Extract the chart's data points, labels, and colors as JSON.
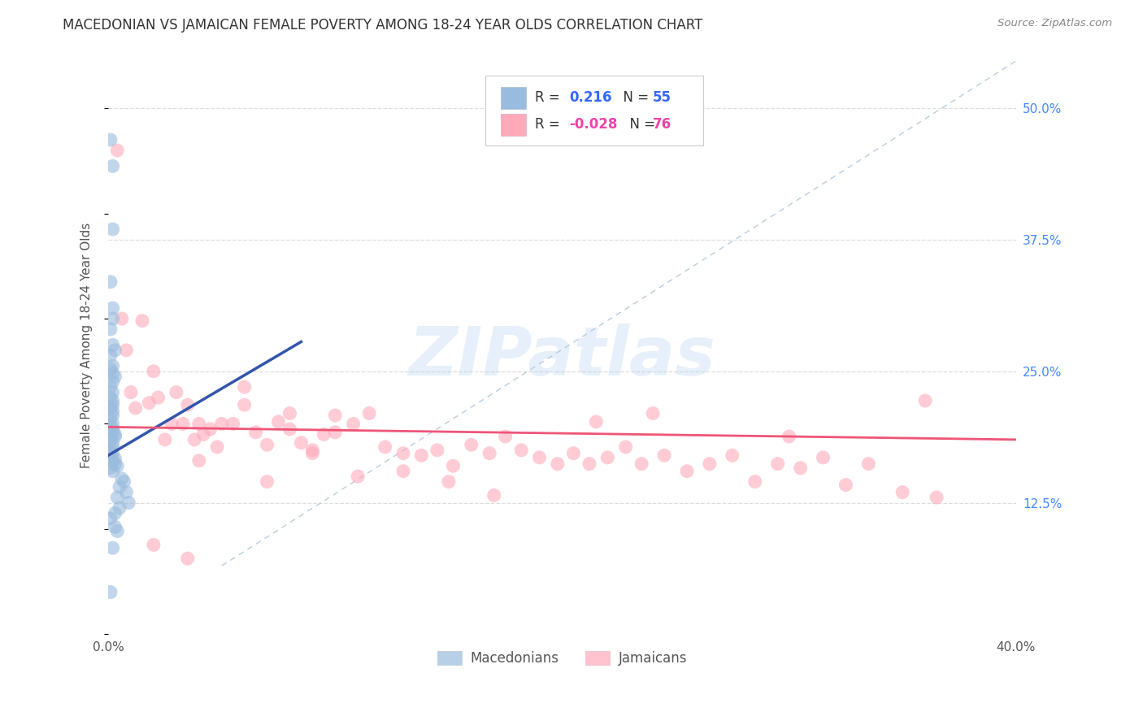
{
  "title": "MACEDONIAN VS JAMAICAN FEMALE POVERTY AMONG 18-24 YEAR OLDS CORRELATION CHART",
  "source": "Source: ZipAtlas.com",
  "ylabel": "Female Poverty Among 18-24 Year Olds",
  "xlim": [
    0.0,
    0.4
  ],
  "ylim": [
    0.0,
    0.55
  ],
  "xticks": [
    0.0,
    0.05,
    0.1,
    0.15,
    0.2,
    0.25,
    0.3,
    0.35,
    0.4
  ],
  "xticklabels": [
    "0.0%",
    "",
    "",
    "",
    "",
    "",
    "",
    "",
    "40.0%"
  ],
  "yticks_right": [
    0.125,
    0.25,
    0.375,
    0.5
  ],
  "ytick_labels_right": [
    "12.5%",
    "25.0%",
    "37.5%",
    "50.0%"
  ],
  "legend_r_blue": "0.216",
  "legend_n_blue": "55",
  "legend_r_pink": "-0.028",
  "legend_n_pink": "76",
  "blue_color": "#99BBDD",
  "pink_color": "#FFAABB",
  "blue_line_color": "#3355AA",
  "pink_line_color": "#EE5577",
  "diagonal_color": "#BBCCDD",
  "grid_color": "#DDDDDD",
  "macedonian_x": [
    0.001,
    0.002,
    0.002,
    0.001,
    0.002,
    0.002,
    0.001,
    0.002,
    0.003,
    0.001,
    0.002,
    0.001,
    0.002,
    0.003,
    0.002,
    0.001,
    0.002,
    0.001,
    0.002,
    0.002,
    0.001,
    0.002,
    0.002,
    0.001,
    0.002,
    0.001,
    0.002,
    0.002,
    0.003,
    0.003,
    0.001,
    0.002,
    0.002,
    0.001,
    0.002,
    0.001,
    0.003,
    0.002,
    0.003,
    0.004,
    0.001,
    0.002,
    0.006,
    0.007,
    0.005,
    0.008,
    0.004,
    0.009,
    0.005,
    0.003,
    0.001,
    0.003,
    0.004,
    0.002,
    0.001
  ],
  "macedonian_y": [
    0.47,
    0.445,
    0.385,
    0.335,
    0.31,
    0.3,
    0.29,
    0.275,
    0.27,
    0.265,
    0.255,
    0.252,
    0.248,
    0.245,
    0.24,
    0.235,
    0.23,
    0.225,
    0.222,
    0.218,
    0.215,
    0.212,
    0.208,
    0.205,
    0.2,
    0.198,
    0.195,
    0.192,
    0.19,
    0.188,
    0.185,
    0.182,
    0.178,
    0.175,
    0.172,
    0.17,
    0.167,
    0.165,
    0.162,
    0.16,
    0.158,
    0.155,
    0.148,
    0.145,
    0.14,
    0.135,
    0.13,
    0.125,
    0.12,
    0.115,
    0.11,
    0.102,
    0.098,
    0.082,
    0.04
  ],
  "jamaican_x": [
    0.004,
    0.006,
    0.008,
    0.01,
    0.012,
    0.015,
    0.018,
    0.02,
    0.022,
    0.025,
    0.028,
    0.03,
    0.033,
    0.035,
    0.038,
    0.04,
    0.042,
    0.045,
    0.048,
    0.05,
    0.055,
    0.06,
    0.065,
    0.07,
    0.075,
    0.08,
    0.085,
    0.09,
    0.095,
    0.1,
    0.108,
    0.115,
    0.122,
    0.13,
    0.138,
    0.145,
    0.152,
    0.16,
    0.168,
    0.175,
    0.182,
    0.19,
    0.198,
    0.205,
    0.212,
    0.22,
    0.228,
    0.235,
    0.245,
    0.255,
    0.265,
    0.275,
    0.285,
    0.295,
    0.305,
    0.315,
    0.325,
    0.335,
    0.35,
    0.365,
    0.06,
    0.08,
    0.1,
    0.04,
    0.07,
    0.09,
    0.11,
    0.13,
    0.15,
    0.17,
    0.215,
    0.24,
    0.3,
    0.36,
    0.02,
    0.035
  ],
  "jamaican_y": [
    0.46,
    0.3,
    0.27,
    0.23,
    0.215,
    0.298,
    0.22,
    0.25,
    0.225,
    0.185,
    0.2,
    0.23,
    0.2,
    0.218,
    0.185,
    0.2,
    0.19,
    0.195,
    0.178,
    0.2,
    0.2,
    0.218,
    0.192,
    0.18,
    0.202,
    0.21,
    0.182,
    0.172,
    0.19,
    0.192,
    0.2,
    0.21,
    0.178,
    0.172,
    0.17,
    0.175,
    0.16,
    0.18,
    0.172,
    0.188,
    0.175,
    0.168,
    0.162,
    0.172,
    0.162,
    0.168,
    0.178,
    0.162,
    0.17,
    0.155,
    0.162,
    0.17,
    0.145,
    0.162,
    0.158,
    0.168,
    0.142,
    0.162,
    0.135,
    0.13,
    0.235,
    0.195,
    0.208,
    0.165,
    0.145,
    0.175,
    0.15,
    0.155,
    0.145,
    0.132,
    0.202,
    0.21,
    0.188,
    0.222,
    0.085,
    0.072
  ],
  "blue_regline_x": [
    0.0,
    0.085
  ],
  "blue_regline_y": [
    0.17,
    0.278
  ],
  "pink_regline_x": [
    0.0,
    0.4
  ],
  "pink_regline_y": [
    0.197,
    0.185
  ]
}
